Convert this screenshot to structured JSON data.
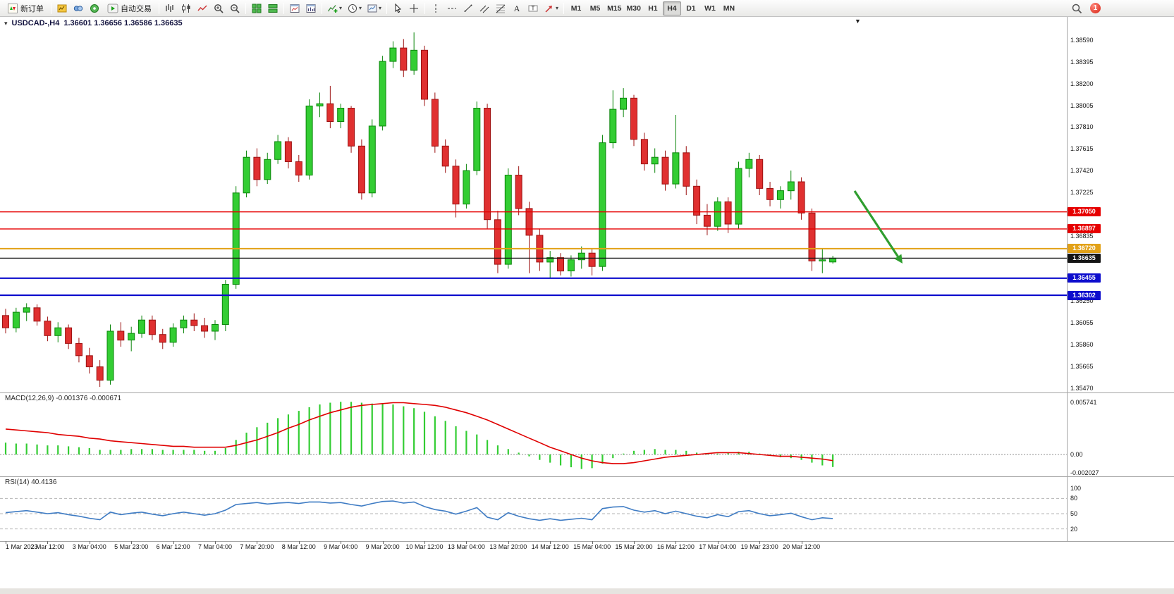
{
  "toolbar": {
    "new_order_label": "新订单",
    "autotrading_label": "自动交易",
    "timeframes": [
      "M1",
      "M5",
      "M15",
      "M30",
      "H1",
      "H4",
      "D1",
      "W1",
      "MN"
    ],
    "active_timeframe": "H4",
    "notification_count": "1"
  },
  "chart": {
    "title": "USDCAD-,H4",
    "ohlc": "1.36601 1.36656 1.36586 1.36635"
  },
  "colors": {
    "bull": "#33cd33",
    "bull_border": "#0b860b",
    "bear": "#e03030",
    "bear_border": "#9c1212",
    "macd_hist": "#33cd33",
    "macd_signal": "#e00000",
    "rsi_line": "#3f7cc4"
  },
  "chart_data": {
    "type": "candlestick",
    "symbol": "USDCAD-",
    "timeframe": "H4",
    "y_range": [
      1.3543,
      1.38685
    ],
    "y_axis_labels": [
      "1.38590",
      "1.38395",
      "1.38200",
      "1.38005",
      "1.37810",
      "1.37615",
      "1.37420",
      "1.37225",
      "1.36835",
      "1.36250",
      "1.36055",
      "1.35860",
      "1.35665",
      "1.35470"
    ],
    "x_labels": [
      "1 Mar 2023",
      "2 Mar 12:00",
      "3 Mar 04:00",
      "5 Mar 23:00",
      "6 Mar 12:00",
      "7 Mar 04:00",
      "7 Mar 20:00",
      "8 Mar 12:00",
      "9 Mar 04:00",
      "9 Mar 20:00",
      "10 Mar 12:00",
      "13 Mar 04:00",
      "13 Mar 20:00",
      "14 Mar 12:00",
      "15 Mar 04:00",
      "15 Mar 20:00",
      "16 Mar 12:00",
      "17 Mar 04:00",
      "19 Mar 23:00",
      "20 Mar 12:00"
    ],
    "candles_ohlc": [
      [
        1.3612,
        1.3618,
        1.3596,
        1.3601
      ],
      [
        1.3601,
        1.3619,
        1.3597,
        1.3615
      ],
      [
        1.3615,
        1.3623,
        1.3607,
        1.3619
      ],
      [
        1.3619,
        1.3622,
        1.3603,
        1.3607
      ],
      [
        1.3607,
        1.3611,
        1.3589,
        1.3594
      ],
      [
        1.3594,
        1.3606,
        1.3588,
        1.3601
      ],
      [
        1.3601,
        1.3604,
        1.3582,
        1.3587
      ],
      [
        1.3587,
        1.3592,
        1.357,
        1.3576
      ],
      [
        1.3576,
        1.3583,
        1.356,
        1.3566
      ],
      [
        1.3566,
        1.3572,
        1.3548,
        1.3554
      ],
      [
        1.3554,
        1.3604,
        1.355,
        1.3598
      ],
      [
        1.3598,
        1.3606,
        1.3584,
        1.359
      ],
      [
        1.359,
        1.3602,
        1.358,
        1.3596
      ],
      [
        1.3596,
        1.3612,
        1.3592,
        1.3608
      ],
      [
        1.3608,
        1.3612,
        1.359,
        1.3595
      ],
      [
        1.3595,
        1.36,
        1.3582,
        1.3588
      ],
      [
        1.3588,
        1.3605,
        1.3584,
        1.3601
      ],
      [
        1.3601,
        1.3612,
        1.3596,
        1.3608
      ],
      [
        1.3608,
        1.3614,
        1.3598,
        1.3603
      ],
      [
        1.3603,
        1.361,
        1.3592,
        1.3598
      ],
      [
        1.3598,
        1.3608,
        1.359,
        1.3604
      ],
      [
        1.3604,
        1.3644,
        1.3598,
        1.364
      ],
      [
        1.364,
        1.3728,
        1.3636,
        1.3722
      ],
      [
        1.3722,
        1.376,
        1.3718,
        1.3754
      ],
      [
        1.3754,
        1.3762,
        1.3728,
        1.3734
      ],
      [
        1.3734,
        1.3758,
        1.373,
        1.3752
      ],
      [
        1.3752,
        1.3774,
        1.3748,
        1.3768
      ],
      [
        1.3768,
        1.3772,
        1.3744,
        1.375
      ],
      [
        1.375,
        1.3756,
        1.3732,
        1.3738
      ],
      [
        1.3738,
        1.3806,
        1.3734,
        1.38
      ],
      [
        1.38,
        1.3812,
        1.379,
        1.3802
      ],
      [
        1.3802,
        1.3818,
        1.378,
        1.3786
      ],
      [
        1.3786,
        1.3802,
        1.378,
        1.3798
      ],
      [
        1.3798,
        1.38,
        1.3758,
        1.3764
      ],
      [
        1.3764,
        1.377,
        1.3716,
        1.3722
      ],
      [
        1.3722,
        1.3788,
        1.3718,
        1.3782
      ],
      [
        1.3782,
        1.3845,
        1.3778,
        1.384
      ],
      [
        1.384,
        1.3858,
        1.3834,
        1.3852
      ],
      [
        1.3852,
        1.386,
        1.3826,
        1.3832
      ],
      [
        1.3832,
        1.3866,
        1.3828,
        1.385
      ],
      [
        1.385,
        1.3854,
        1.38,
        1.3806
      ],
      [
        1.3806,
        1.3812,
        1.3758,
        1.3764
      ],
      [
        1.3764,
        1.377,
        1.374,
        1.3746
      ],
      [
        1.3746,
        1.3752,
        1.37,
        1.3712
      ],
      [
        1.3712,
        1.3748,
        1.3708,
        1.3742
      ],
      [
        1.3742,
        1.3804,
        1.3738,
        1.3798
      ],
      [
        1.3798,
        1.3802,
        1.369,
        1.3698
      ],
      [
        1.3698,
        1.3706,
        1.365,
        1.3658
      ],
      [
        1.3658,
        1.3744,
        1.3654,
        1.3738
      ],
      [
        1.3738,
        1.3746,
        1.3702,
        1.3708
      ],
      [
        1.3708,
        1.3714,
        1.365,
        1.3684
      ],
      [
        1.3684,
        1.369,
        1.3652,
        1.366
      ],
      [
        1.366,
        1.367,
        1.3646,
        1.3664
      ],
      [
        1.3664,
        1.3668,
        1.3648,
        1.3652
      ],
      [
        1.3652,
        1.3666,
        1.3647,
        1.3662
      ],
      [
        1.3662,
        1.3674,
        1.3654,
        1.3668
      ],
      [
        1.3668,
        1.3672,
        1.3648,
        1.3656
      ],
      [
        1.3656,
        1.3774,
        1.3652,
        1.3767
      ],
      [
        1.3767,
        1.3814,
        1.3762,
        1.3797
      ],
      [
        1.3797,
        1.3816,
        1.379,
        1.3807
      ],
      [
        1.3807,
        1.381,
        1.3764,
        1.377
      ],
      [
        1.377,
        1.3776,
        1.3742,
        1.3748
      ],
      [
        1.3748,
        1.3762,
        1.374,
        1.3754
      ],
      [
        1.3754,
        1.376,
        1.3724,
        1.373
      ],
      [
        1.373,
        1.3792,
        1.3726,
        1.3758
      ],
      [
        1.3758,
        1.3764,
        1.372,
        1.3728
      ],
      [
        1.3728,
        1.3734,
        1.3694,
        1.3702
      ],
      [
        1.3702,
        1.3712,
        1.3684,
        1.3692
      ],
      [
        1.3692,
        1.3718,
        1.3688,
        1.3714
      ],
      [
        1.3714,
        1.3718,
        1.3686,
        1.3694
      ],
      [
        1.3694,
        1.375,
        1.369,
        1.3744
      ],
      [
        1.3744,
        1.3758,
        1.3736,
        1.3752
      ],
      [
        1.3752,
        1.3756,
        1.372,
        1.3726
      ],
      [
        1.3726,
        1.3732,
        1.371,
        1.3716
      ],
      [
        1.3716,
        1.3728,
        1.3708,
        1.3724
      ],
      [
        1.3724,
        1.3742,
        1.3716,
        1.3732
      ],
      [
        1.3732,
        1.3736,
        1.3698,
        1.3704
      ],
      [
        1.3704,
        1.3708,
        1.3652,
        1.3661
      ],
      [
        1.3661,
        1.3672,
        1.365,
        1.3662
      ],
      [
        1.36601,
        1.36656,
        1.36586,
        1.36635
      ]
    ],
    "price_lines": [
      {
        "price": 1.3705,
        "label": "1.37050",
        "color": "#e60000",
        "width": 1.4
      },
      {
        "price": 1.36897,
        "label": "1.36897",
        "color": "#e60000",
        "width": 1.4
      },
      {
        "price": 1.3672,
        "label": "1.36720",
        "color": "#e2a117",
        "width": 2
      },
      {
        "price": 1.36635,
        "label": "1.36635",
        "color": "#141414",
        "width": 1.2
      },
      {
        "price": 1.36455,
        "label": "1.36455",
        "color": "#0d0dcd",
        "width": 2.2
      },
      {
        "price": 1.36302,
        "label": "1.36302",
        "color": "#0d0dcd",
        "width": 2.2
      }
    ],
    "arrow": {
      "from": [
        1212,
        271
      ],
      "to": [
        1280,
        374
      ],
      "color": "#2f9e2f"
    },
    "macd": {
      "label": "MACD(12,26,9) -0.001376 -0.000671",
      "axis": [
        "0.005741",
        "0.00",
        "-0.002027"
      ],
      "histogram": [
        0.0013,
        0.0012,
        0.0012,
        0.0011,
        0.001,
        0.001,
        0.0009,
        0.0008,
        0.0007,
        0.0005,
        0.0005,
        0.0005,
        0.0006,
        0.0006,
        0.0006,
        0.0005,
        0.0005,
        0.0005,
        0.0005,
        0.0004,
        0.0004,
        0.0007,
        0.0016,
        0.0024,
        0.003,
        0.0035,
        0.004,
        0.0044,
        0.0048,
        0.0052,
        0.0055,
        0.0057,
        0.0058,
        0.0058,
        0.0057,
        0.0056,
        0.0056,
        0.0055,
        0.0053,
        0.0051,
        0.0047,
        0.0042,
        0.0037,
        0.0031,
        0.0026,
        0.0022,
        0.0016,
        0.001,
        0.0006,
        0.0002,
        -0.0002,
        -0.0006,
        -0.0009,
        -0.0012,
        -0.0014,
        -0.0016,
        -0.0015,
        -0.001,
        -0.0004,
        0.0001,
        0.0004,
        0.0005,
        0.0006,
        0.0005,
        0.0005,
        0.0004,
        0.0002,
        0.0001,
        0.0001,
        0.0002,
        0.0003,
        0.0003,
        0.0001,
        -0.0001,
        -0.0003,
        -0.0004,
        -0.0006,
        -0.0009,
        -0.0012,
        -0.001376
      ],
      "signal": [
        0.0028,
        0.0027,
        0.0026,
        0.0025,
        0.0024,
        0.0022,
        0.0021,
        0.002,
        0.0018,
        0.0017,
        0.0015,
        0.0014,
        0.0013,
        0.0012,
        0.0011,
        0.001,
        0.0009,
        0.0009,
        0.0008,
        0.0008,
        0.0008,
        0.0008,
        0.001,
        0.0013,
        0.0016,
        0.002,
        0.0024,
        0.0029,
        0.0033,
        0.0038,
        0.0042,
        0.0046,
        0.0049,
        0.0052,
        0.0054,
        0.0055,
        0.0056,
        0.0057,
        0.0057,
        0.0056,
        0.0055,
        0.0054,
        0.0052,
        0.0049,
        0.0046,
        0.0042,
        0.0038,
        0.0033,
        0.0028,
        0.0023,
        0.0018,
        0.0013,
        0.0008,
        0.0004,
        0.0,
        -0.0004,
        -0.0007,
        -0.0009,
        -0.001,
        -0.001,
        -0.0009,
        -0.0007,
        -0.0005,
        -0.0003,
        -0.0002,
        -0.0001,
        0.0,
        0.0001,
        0.0002,
        0.0002,
        0.0002,
        0.0001,
        0.0,
        -0.0001,
        -0.0002,
        -0.0002,
        -0.0003,
        -0.0004,
        -0.0005,
        -0.000671
      ]
    },
    "rsi": {
      "label": "RSI(14) 40.4136",
      "axis": [
        "100",
        "80",
        "50",
        "20"
      ],
      "levels": [
        80,
        50,
        20
      ],
      "values": [
        52,
        54,
        56,
        53,
        50,
        52,
        48,
        45,
        41,
        38,
        53,
        48,
        51,
        53,
        49,
        46,
        50,
        53,
        50,
        47,
        50,
        57,
        68,
        70,
        72,
        69,
        71,
        72,
        70,
        73,
        73,
        71,
        72,
        68,
        65,
        70,
        74,
        75,
        71,
        73,
        64,
        58,
        55,
        49,
        55,
        62,
        43,
        38,
        52,
        45,
        40,
        37,
        40,
        37,
        39,
        41,
        38,
        60,
        63,
        64,
        57,
        53,
        56,
        50,
        55,
        50,
        45,
        42,
        48,
        44,
        54,
        56,
        50,
        46,
        48,
        51,
        44,
        38,
        42,
        40.41
      ]
    }
  }
}
